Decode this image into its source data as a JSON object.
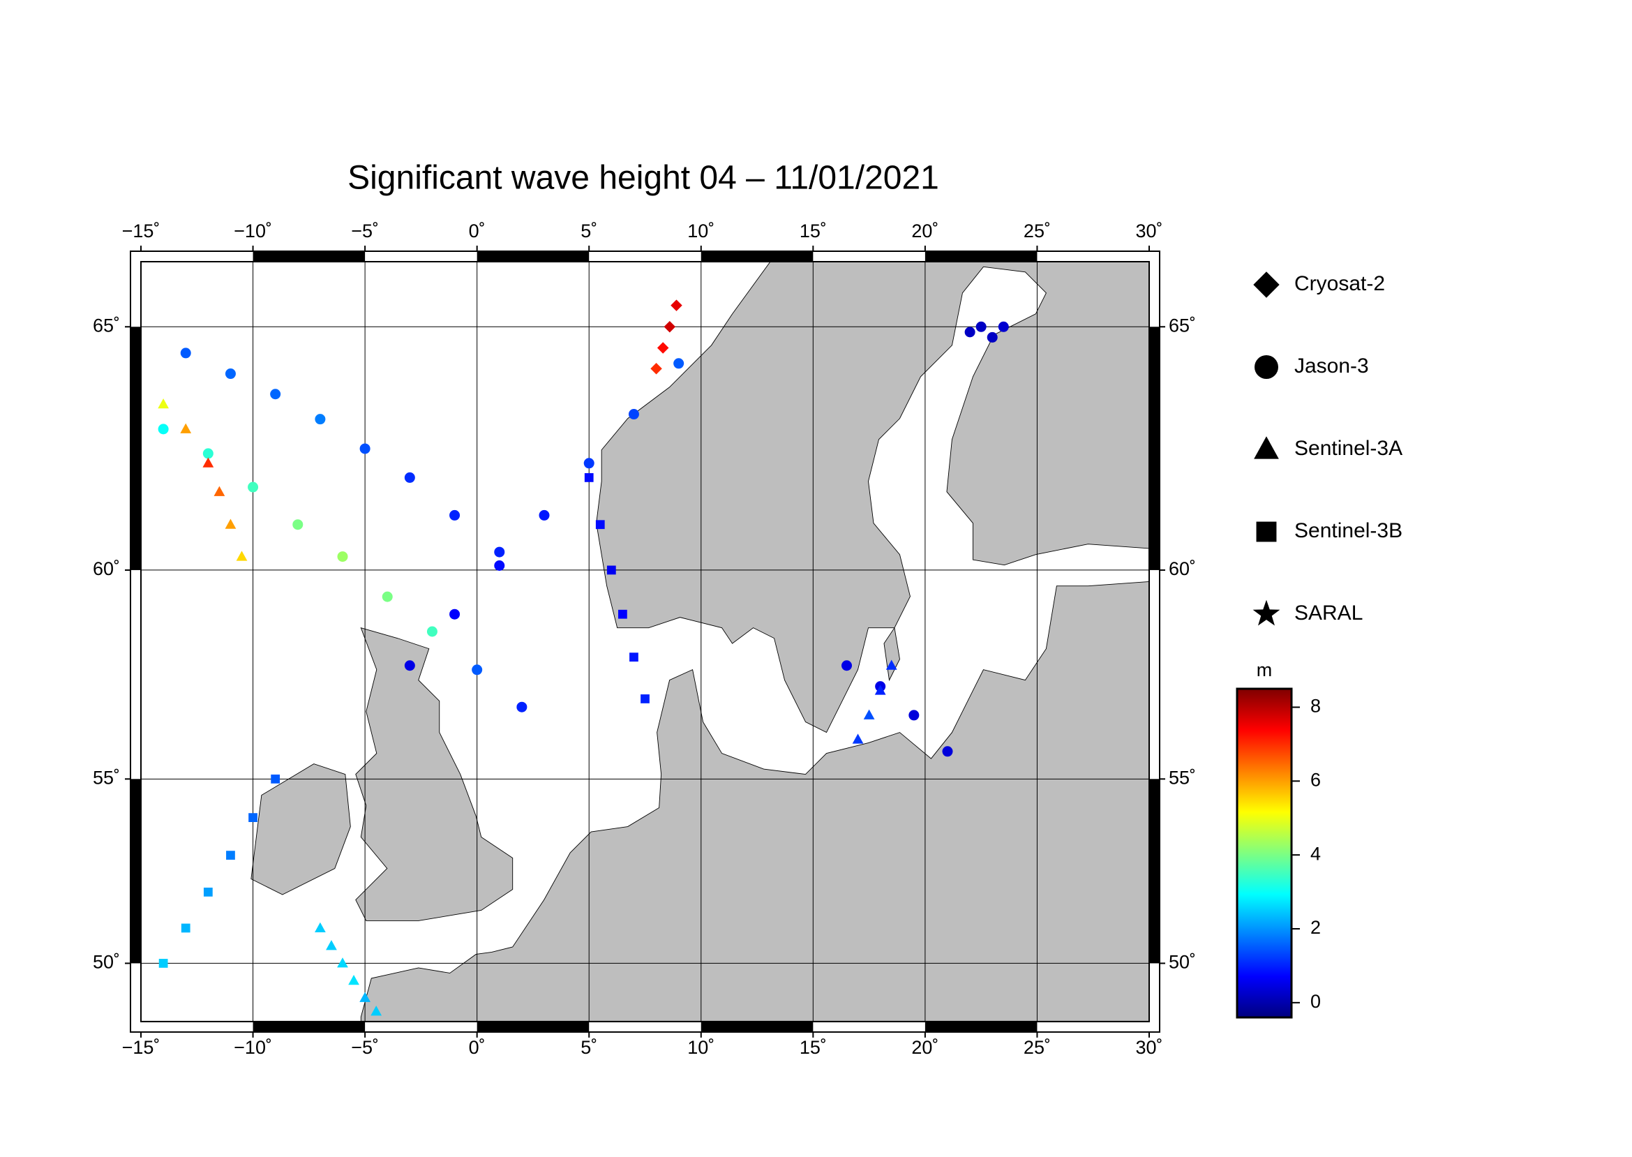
{
  "chart_data": {
    "type": "map",
    "title": "Significant wave height 04 – 11/01/2021",
    "xlim": [
      -15,
      30
    ],
    "ylim": [
      48.3,
      66.2
    ],
    "xticks": [
      {
        "value": -15,
        "label": "−15˚"
      },
      {
        "value": -10,
        "label": "−10˚"
      },
      {
        "value": -5,
        "label": "−5˚"
      },
      {
        "value": 0,
        "label": "0˚"
      },
      {
        "value": 5,
        "label": "5˚"
      },
      {
        "value": 10,
        "label": "10˚"
      },
      {
        "value": 15,
        "label": "15˚"
      },
      {
        "value": 20,
        "label": "20˚"
      },
      {
        "value": 25,
        "label": "25˚"
      },
      {
        "value": 30,
        "label": "30˚"
      }
    ],
    "yticks": [
      {
        "value": 50,
        "label": "50˚"
      },
      {
        "value": 55,
        "label": "55˚"
      },
      {
        "value": 60,
        "label": "60˚"
      },
      {
        "value": 65,
        "label": "65˚"
      }
    ],
    "grid": true,
    "colorbar": {
      "label": "m",
      "clim": [
        -0.4,
        8.5
      ],
      "ticks": [
        0,
        2,
        4,
        6,
        8
      ],
      "colormap": "jet"
    },
    "series": [
      {
        "name": "Cryosat-2",
        "marker": "diamond",
        "lon": [
          8,
          8.3,
          8.6,
          8.9
        ],
        "lat": [
          64.2,
          64.6,
          65,
          65.4
        ],
        "values": [
          7,
          7.3,
          7.8,
          7.6
        ]
      },
      {
        "name": "Jason-3",
        "marker": "circle",
        "lon": [
          -13,
          -11,
          -9,
          -7,
          -5,
          -3,
          -1,
          1,
          -3,
          -1,
          1,
          3,
          5,
          7,
          9,
          -14,
          -12,
          -10,
          -8,
          -6,
          -4,
          -2,
          0,
          2,
          16.5,
          18,
          19.5,
          21,
          22,
          22.5,
          23,
          23.5
        ],
        "lat": [
          64.5,
          64.1,
          63.7,
          63.2,
          62.6,
          62,
          61.2,
          60.4,
          57.8,
          59,
          60.1,
          61.2,
          62.3,
          63.3,
          64.3,
          63,
          62.5,
          61.8,
          61,
          60.3,
          59.4,
          58.6,
          57.7,
          56.8,
          57.8,
          57.3,
          56.6,
          55.7,
          64.9,
          65,
          64.8,
          65
        ],
        "values": [
          1.5,
          1.6,
          1.6,
          1.8,
          1.4,
          1.1,
          1,
          1,
          0.5,
          0.7,
          0.8,
          0.9,
          1.2,
          1.3,
          1.5,
          3,
          3.3,
          3.5,
          4,
          4.3,
          4,
          3.5,
          1.5,
          1,
          0.5,
          0.5,
          0.4,
          0.4,
          0.2,
          0.2,
          0.2,
          0.3
        ]
      },
      {
        "name": "Sentinel-3A",
        "marker": "triangle",
        "lon": [
          -14,
          -13,
          -12,
          -11.5,
          -11,
          -10.5,
          -7,
          -6.5,
          -6,
          -5.5,
          -5,
          -4.5,
          17,
          17.5,
          18,
          18.5
        ],
        "lat": [
          63.5,
          63,
          62.3,
          61.7,
          61,
          60.3,
          51,
          50.5,
          50,
          49.5,
          49,
          48.6,
          56,
          56.6,
          57.2,
          57.8
        ],
        "values": [
          5,
          6,
          7,
          6.5,
          6,
          5.5,
          2.5,
          2.5,
          2.6,
          2.7,
          2.3,
          2.5,
          1.2,
          1.4,
          1,
          1.1
        ]
      },
      {
        "name": "Sentinel-3B",
        "marker": "square",
        "lon": [
          -14,
          -13,
          -12,
          -11,
          -10,
          -9,
          5,
          5.5,
          6,
          6.5,
          7,
          7.5
        ],
        "lat": [
          50,
          51,
          52,
          53,
          54,
          55,
          62,
          61,
          60,
          59,
          58,
          57
        ],
        "values": [
          2.5,
          2.3,
          2.1,
          1.8,
          1.6,
          1.5,
          0.8,
          0.8,
          0.6,
          0.7,
          0.9,
          1
        ]
      },
      {
        "name": "SARAL",
        "marker": "star",
        "lon": [],
        "lat": [],
        "values": []
      }
    ]
  }
}
